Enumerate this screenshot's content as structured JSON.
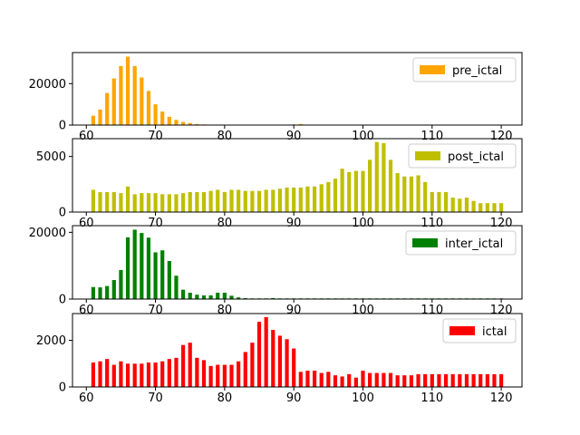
{
  "chart_data": [
    {
      "type": "bar",
      "legend": "pre_ictal",
      "legend_position": "top-right",
      "color": "#ffa500",
      "xlim": [
        58,
        123
      ],
      "ylim": [
        0,
        35000
      ],
      "xticks": [
        60,
        70,
        80,
        90,
        100,
        110,
        120
      ],
      "yticks": [
        0,
        20000
      ],
      "x": [
        61,
        62,
        63,
        64,
        65,
        66,
        67,
        68,
        69,
        70,
        71,
        72,
        73,
        74,
        75,
        76,
        77,
        78,
        79,
        80,
        81,
        82,
        83,
        84,
        85,
        86,
        87,
        88,
        89,
        90,
        91,
        92,
        93,
        94,
        95,
        96,
        97,
        98,
        99,
        100,
        101,
        102,
        103,
        104,
        105,
        106,
        107,
        108,
        109,
        110,
        111,
        112,
        113,
        114,
        115,
        116,
        117,
        118,
        119,
        120
      ],
      "values": [
        4500,
        7500,
        15500,
        22500,
        28500,
        33000,
        28500,
        23000,
        16500,
        10000,
        6500,
        4000,
        2500,
        1500,
        1000,
        500,
        300,
        150,
        100,
        80,
        60,
        50,
        40,
        30,
        30,
        30,
        30,
        30,
        60,
        300,
        500,
        150,
        50,
        30,
        30,
        30,
        30,
        30,
        30,
        30,
        30,
        30,
        30,
        30,
        30,
        30,
        30,
        30,
        30,
        30,
        30,
        30,
        30,
        30,
        30,
        30,
        30,
        30,
        30,
        30
      ]
    },
    {
      "type": "bar",
      "legend": "post_ictal",
      "legend_position": "top-right",
      "color": "#bfbf00",
      "xlim": [
        58,
        123
      ],
      "ylim": [
        0,
        6600
      ],
      "xticks": [
        60,
        70,
        80,
        90,
        100,
        110,
        120
      ],
      "yticks": [
        0,
        5000
      ],
      "x": [
        61,
        62,
        63,
        64,
        65,
        66,
        67,
        68,
        69,
        70,
        71,
        72,
        73,
        74,
        75,
        76,
        77,
        78,
        79,
        80,
        81,
        82,
        83,
        84,
        85,
        86,
        87,
        88,
        89,
        90,
        91,
        92,
        93,
        94,
        95,
        96,
        97,
        98,
        99,
        100,
        101,
        102,
        103,
        104,
        105,
        106,
        107,
        108,
        109,
        110,
        111,
        112,
        113,
        114,
        115,
        116,
        117,
        118,
        119,
        120
      ],
      "values": [
        2000,
        1800,
        1800,
        1800,
        1700,
        2300,
        1600,
        1700,
        1700,
        1700,
        1600,
        1600,
        1600,
        1700,
        1800,
        1800,
        1800,
        1900,
        2000,
        1800,
        2000,
        2000,
        1900,
        1900,
        1900,
        2000,
        2000,
        2100,
        2200,
        2200,
        2200,
        2300,
        2300,
        2500,
        2700,
        3000,
        3900,
        3600,
        3700,
        3700,
        4700,
        6300,
        6200,
        4700,
        3500,
        3200,
        3200,
        3300,
        2700,
        1800,
        1800,
        1800,
        1300,
        1200,
        1300,
        1000,
        800,
        800,
        800,
        800
      ]
    },
    {
      "type": "bar",
      "legend": "inter_ictal",
      "legend_position": "top-right",
      "color": "#008000",
      "xlim": [
        58,
        123
      ],
      "ylim": [
        0,
        22000
      ],
      "xticks": [
        60,
        70,
        80,
        90,
        100,
        110,
        120
      ],
      "yticks": [
        0,
        20000
      ],
      "x": [
        61,
        62,
        63,
        64,
        65,
        66,
        67,
        68,
        69,
        70,
        71,
        72,
        73,
        74,
        75,
        76,
        77,
        78,
        79,
        80,
        81,
        82,
        83,
        84,
        85,
        86,
        87,
        88,
        89,
        90,
        91,
        92,
        93,
        94,
        95,
        96,
        97,
        98,
        99,
        100,
        101,
        102,
        103,
        104,
        105,
        106,
        107,
        108,
        109,
        110,
        111,
        112,
        113,
        114,
        115,
        116,
        117,
        118,
        119,
        120
      ],
      "values": [
        3600,
        3500,
        3900,
        5700,
        8700,
        18500,
        20800,
        19800,
        18400,
        14000,
        14600,
        11400,
        7000,
        2800,
        1900,
        1300,
        1100,
        1100,
        1900,
        1900,
        1000,
        500,
        300,
        200,
        200,
        200,
        300,
        200,
        200,
        200,
        200,
        200,
        200,
        200,
        200,
        200,
        200,
        200,
        200,
        200,
        200,
        200,
        200,
        200,
        200,
        200,
        200,
        200,
        200,
        200,
        200,
        200,
        200,
        200,
        200,
        200,
        200,
        200,
        200,
        200
      ]
    },
    {
      "type": "bar",
      "legend": "ictal",
      "legend_position": "top-right",
      "color": "#ff0000",
      "xlim": [
        58,
        123
      ],
      "ylim": [
        0,
        3150
      ],
      "xticks": [
        60,
        70,
        80,
        90,
        100,
        110,
        120
      ],
      "yticks": [
        0,
        2000
      ],
      "x": [
        61,
        62,
        63,
        64,
        65,
        66,
        67,
        68,
        69,
        70,
        71,
        72,
        73,
        74,
        75,
        76,
        77,
        78,
        79,
        80,
        81,
        82,
        83,
        84,
        85,
        86,
        87,
        88,
        89,
        90,
        91,
        92,
        93,
        94,
        95,
        96,
        97,
        98,
        99,
        100,
        101,
        102,
        103,
        104,
        105,
        106,
        107,
        108,
        109,
        110,
        111,
        112,
        113,
        114,
        115,
        116,
        117,
        118,
        119,
        120
      ],
      "values": [
        1050,
        1100,
        1200,
        950,
        1100,
        1000,
        1000,
        1000,
        1050,
        1050,
        1100,
        1200,
        1250,
        1800,
        1900,
        1250,
        1150,
        900,
        950,
        950,
        950,
        1100,
        1500,
        1900,
        2800,
        3000,
        2450,
        2200,
        2050,
        1650,
        650,
        700,
        700,
        600,
        650,
        500,
        450,
        550,
        400,
        700,
        600,
        600,
        600,
        600,
        500,
        500,
        500,
        550,
        550,
        550,
        550,
        550,
        550,
        550,
        550,
        550,
        550,
        550,
        550,
        550
      ]
    }
  ]
}
